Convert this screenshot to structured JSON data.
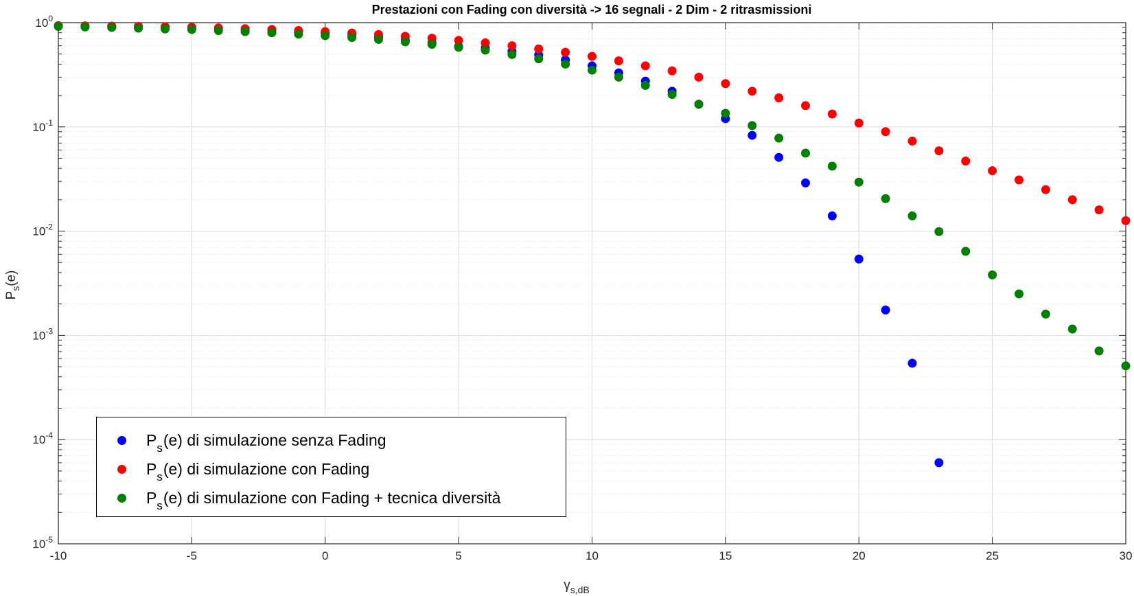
{
  "chart_data": {
    "type": "scatter",
    "title": "Prestazioni con Fading con diversità -> 16 segnali - 2 Dim - 2 ritrasmissioni",
    "xlabel": {
      "main": "γ",
      "sub": "s,dB"
    },
    "ylabel": {
      "main": "P",
      "sub": "s",
      "rest": "(e)"
    },
    "xlim": [
      -10,
      30
    ],
    "ylim": [
      1e-05,
      1
    ],
    "yscale": "log",
    "grid": true,
    "legend_position": "bottom-left",
    "x_ticks": [
      "-10",
      "-5",
      "0",
      "5",
      "10",
      "15",
      "20",
      "25",
      "30"
    ],
    "y_ticks": [
      {
        "base": "10",
        "exp": "-5"
      },
      {
        "base": "10",
        "exp": "-4"
      },
      {
        "base": "10",
        "exp": "-3"
      },
      {
        "base": "10",
        "exp": "-2"
      },
      {
        "base": "10",
        "exp": "-1"
      },
      {
        "base": "10",
        "exp": "0"
      }
    ],
    "series": [
      {
        "name": "di simulazione senza Fading",
        "color": "#0000ff",
        "x": [
          -10,
          -9,
          -8,
          -7,
          -6,
          -5,
          -4,
          -3,
          -2,
          -1,
          0,
          1,
          2,
          3,
          4,
          5,
          6,
          7,
          8,
          9,
          10,
          11,
          12,
          13,
          14,
          15,
          16,
          17,
          18,
          19,
          20,
          21,
          22,
          23
        ],
        "y": [
          0.935,
          0.93,
          0.925,
          0.915,
          0.905,
          0.895,
          0.88,
          0.86,
          0.84,
          0.815,
          0.79,
          0.76,
          0.72,
          0.68,
          0.64,
          0.59,
          0.57,
          0.53,
          0.49,
          0.44,
          0.385,
          0.33,
          0.275,
          0.22,
          0.165,
          0.12,
          0.083,
          0.051,
          0.029,
          0.014,
          0.0054,
          0.00175,
          0.00054,
          6e-05
        ]
      },
      {
        "name": "di simulazione con Fading",
        "color": "#ff0000",
        "x": [
          -10,
          -9,
          -8,
          -7,
          -6,
          -5,
          -4,
          -3,
          -2,
          -1,
          0,
          1,
          2,
          3,
          4,
          5,
          6,
          7,
          8,
          9,
          10,
          11,
          12,
          13,
          14,
          15,
          16,
          17,
          18,
          19,
          20,
          21,
          22,
          23,
          24,
          25,
          26,
          27,
          28,
          29,
          30
        ],
        "y": [
          0.935,
          0.93,
          0.925,
          0.92,
          0.915,
          0.905,
          0.89,
          0.875,
          0.86,
          0.84,
          0.82,
          0.795,
          0.77,
          0.74,
          0.71,
          0.675,
          0.64,
          0.6,
          0.56,
          0.52,
          0.475,
          0.43,
          0.385,
          0.345,
          0.3,
          0.26,
          0.22,
          0.19,
          0.16,
          0.133,
          0.109,
          0.09,
          0.073,
          0.059,
          0.047,
          0.038,
          0.031,
          0.025,
          0.02,
          0.016,
          0.0126
        ]
      },
      {
        "name": "di simulazione con Fading + tecnica diversità",
        "color": "#007f00",
        "x": [
          -10,
          -9,
          -8,
          -7,
          -6,
          -5,
          -4,
          -3,
          -2,
          -1,
          0,
          1,
          2,
          3,
          4,
          5,
          6,
          7,
          8,
          9,
          10,
          11,
          12,
          13,
          14,
          15,
          16,
          17,
          18,
          19,
          20,
          21,
          22,
          23,
          24,
          25,
          26,
          27,
          28,
          29,
          30
        ],
        "y": [
          0.92,
          0.91,
          0.9,
          0.885,
          0.87,
          0.86,
          0.84,
          0.82,
          0.8,
          0.775,
          0.75,
          0.72,
          0.69,
          0.655,
          0.62,
          0.58,
          0.545,
          0.495,
          0.45,
          0.4,
          0.35,
          0.3,
          0.25,
          0.205,
          0.165,
          0.135,
          0.103,
          0.078,
          0.056,
          0.042,
          0.0295,
          0.0205,
          0.014,
          0.0099,
          0.0064,
          0.0038,
          0.0025,
          0.0016,
          0.00115,
          0.00071,
          0.00051
        ]
      }
    ]
  },
  "legend": {
    "prefix_main": "P",
    "prefix_sub": "s",
    "prefix_rest": "(e)"
  }
}
